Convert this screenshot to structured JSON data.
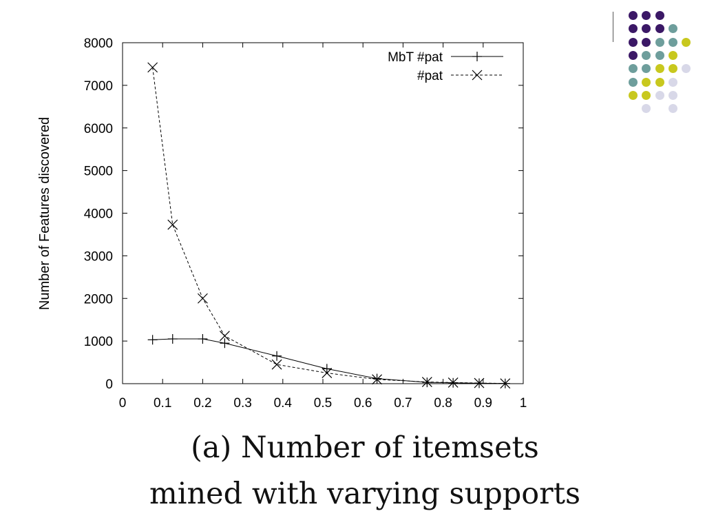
{
  "chart_data": {
    "type": "line",
    "xlabel": "",
    "ylabel": "Number of Features discovered",
    "xlim": [
      0,
      1
    ],
    "ylim": [
      0,
      8000
    ],
    "xticks": [
      "0",
      "0.1",
      "0.2",
      "0.3",
      "0.4",
      "0.5",
      "0.6",
      "0.7",
      "0.8",
      "0.9",
      "1"
    ],
    "yticks": [
      "0",
      "1000",
      "2000",
      "3000",
      "4000",
      "5000",
      "6000",
      "7000",
      "8000"
    ],
    "legend_position": "top-right",
    "series": [
      {
        "name": "MbT #pat",
        "marker": "plus",
        "line": "solid",
        "x": [
          0.075,
          0.125,
          0.2,
          0.255,
          0.385,
          0.51,
          0.635,
          0.76,
          0.825,
          0.89,
          0.955
        ],
        "y": [
          1030,
          1050,
          1050,
          950,
          650,
          350,
          120,
          30,
          20,
          10,
          5
        ]
      },
      {
        "name": "#pat",
        "marker": "x",
        "line": "dashed",
        "x": [
          0.075,
          0.125,
          0.2,
          0.255,
          0.385,
          0.51,
          0.635,
          0.76,
          0.825,
          0.89,
          0.955
        ],
        "y": [
          7420,
          3730,
          2000,
          1120,
          450,
          250,
          100,
          40,
          25,
          15,
          5
        ]
      }
    ]
  },
  "caption": {
    "line1": "(a) Number of itemsets",
    "line2": "mined with varying supports"
  },
  "decoration": {
    "colors": [
      "#3b1866",
      "#6e9e9c",
      "#c8c81e",
      "#d8d8e8"
    ]
  }
}
